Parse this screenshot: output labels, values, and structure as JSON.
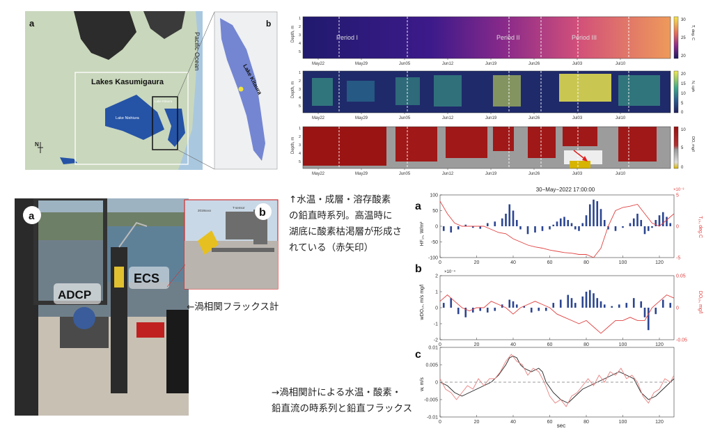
{
  "map": {
    "panel_a": "a",
    "panel_b": "b",
    "ocean_label": "Pacific Ocean",
    "lakes_label": "Lakes Kasumigaura",
    "lake_nishiura": "Lake Nishiura",
    "lake_kitaura_small": "Lake Kitaura",
    "lake_kitaura": "Lake Kitaura",
    "north_label": "N"
  },
  "heatmaps": {
    "periods": [
      "Period I",
      "Period II",
      "Period III"
    ],
    "dates": [
      "May22",
      "May29",
      "Jun05",
      "Jun12",
      "Jun19",
      "Jun26",
      "Jul03",
      "Jul10"
    ],
    "depth_ticks": [
      "1",
      "2",
      "3",
      "4",
      "5"
    ],
    "depth_label": "Depth, m",
    "temp": {
      "label": "T, deg. C",
      "ticks": [
        "30",
        "25",
        "20"
      ]
    },
    "n": {
      "label": "N, cph",
      "ticks": [
        "20",
        "15",
        "10",
        "5",
        "0"
      ]
    },
    "do": {
      "label": "DO, mg/l",
      "ticks": [
        "10",
        "5",
        "0"
      ]
    }
  },
  "photos": {
    "panel_a": "a",
    "panel_b": "b",
    "adcp": "ADCP",
    "ecs": "ECS",
    "sign_left": "2019xxxx",
    "sign_right": "T-sensor"
  },
  "notes": {
    "note1_lines": [
      "↑水温・成層・溶存酸素",
      "の鉛直時系列。高温時に",
      "湖底に酸素枯渇層が形成さ",
      "れている（赤矢印）"
    ],
    "note2": "←渦相関フラックス計",
    "note3_lines": [
      "→渦相関計による水温・酸素・",
      "鉛直流の時系列と鉛直フラックス"
    ]
  },
  "flux": {
    "title": "30−May−2022 17:00:00",
    "xlabel": "sec",
    "panel_a": "a",
    "panel_b": "b",
    "panel_c": "c",
    "a_ylabel": "HF₁ₛ, W/m²",
    "a_y2label": "T₁ₛ, deg.C",
    "a_exp": "×10⁻³",
    "b_ylabel": "wDO₁ₛ, m/s mg/l",
    "b_y2label": "DO₁ₛ, mg/l",
    "b_exp": "×10⁻⁴",
    "c_ylabel": "w, m/s"
  },
  "chart_data": [
    {
      "type": "bar",
      "panel": "a",
      "title": "30−May−2022 17:00:00",
      "xlabel": "sec",
      "ylabel": "HF₁ₛ, W/m²",
      "y2label": "T₁ₛ, deg.C",
      "xlim": [
        0,
        128
      ],
      "ylim": [
        -100,
        100
      ],
      "y2lim": [
        -5,
        5
      ],
      "xticks": [
        0,
        20,
        40,
        60,
        80,
        100,
        120
      ],
      "yticks": [
        -100,
        -50,
        0,
        50,
        100
      ],
      "y2ticks": [
        -5,
        0,
        5
      ],
      "series": [
        {
          "name": "HF",
          "type": "bar",
          "color": "#2b4590",
          "x": [
            2,
            6,
            10,
            14,
            18,
            22,
            26,
            30,
            34,
            36,
            38,
            40,
            42,
            44,
            48,
            52,
            56,
            60,
            62,
            64,
            66,
            68,
            70,
            72,
            74,
            76,
            78,
            80,
            82,
            84,
            86,
            88,
            90,
            92,
            96,
            100,
            104,
            106,
            108,
            110,
            112,
            114,
            116,
            118,
            120,
            122,
            124,
            126
          ],
          "y": [
            -15,
            -20,
            -10,
            5,
            -5,
            -8,
            10,
            15,
            25,
            40,
            70,
            50,
            20,
            -10,
            -25,
            -20,
            -15,
            -10,
            5,
            15,
            25,
            30,
            20,
            10,
            -10,
            -15,
            10,
            35,
            70,
            85,
            80,
            55,
            20,
            -10,
            -15,
            -5,
            10,
            25,
            40,
            20,
            -25,
            -15,
            -5,
            20,
            35,
            45,
            30,
            10
          ]
        },
        {
          "type": "line",
          "color": "#e04040",
          "x": [
            0,
            4,
            8,
            12,
            16,
            20,
            24,
            28,
            32,
            36,
            40,
            44,
            48,
            52,
            56,
            60,
            64,
            68,
            72,
            76,
            80,
            84,
            88,
            92,
            96,
            100,
            104,
            108,
            112,
            116,
            120,
            124,
            128
          ],
          "y": [
            4,
            2,
            0.5,
            0,
            0,
            0,
            0,
            -0.5,
            -1,
            -1.2,
            -2,
            -2.5,
            -3,
            -3.3,
            -3.5,
            -3.8,
            -4,
            -4.2,
            -4.3,
            -4.5,
            -4.5,
            -5,
            -3.5,
            0,
            2.5,
            3,
            3.2,
            3.5,
            2,
            0.5,
            0,
            1,
            2
          ]
        }
      ]
    },
    {
      "type": "bar",
      "panel": "b",
      "ylabel": "wDO₁ₛ, m/s mg/l",
      "y2label": "DO₁ₛ, mg/l",
      "xlim": [
        0,
        128
      ],
      "ylim": [
        -2,
        2
      ],
      "y2lim": [
        -0.05,
        0.05
      ],
      "xticks": [
        0,
        20,
        40,
        60,
        80,
        100,
        120
      ],
      "yticks": [
        -2,
        -1,
        0,
        1,
        2
      ],
      "y2ticks": [
        -0.05,
        0,
        0.05
      ],
      "series": [
        {
          "name": "wDO",
          "type": "bar",
          "color": "#2b4590",
          "x": [
            2,
            6,
            10,
            14,
            18,
            22,
            26,
            30,
            34,
            38,
            40,
            42,
            46,
            50,
            54,
            58,
            62,
            66,
            70,
            72,
            74,
            78,
            80,
            82,
            84,
            86,
            88,
            90,
            94,
            98,
            102,
            106,
            110,
            112,
            114,
            118,
            122,
            126
          ],
          "y": [
            0.3,
            0.6,
            -0.4,
            -0.6,
            -0.3,
            -0.2,
            -0.3,
            -0.2,
            0.2,
            0.5,
            0.4,
            0.2,
            0.1,
            -0.3,
            -0.2,
            -0.2,
            0.3,
            0.5,
            0.8,
            0.6,
            0.3,
            0.7,
            1.0,
            1.1,
            0.9,
            0.6,
            0.4,
            0.2,
            0.1,
            0.2,
            0.3,
            0.6,
            0.4,
            -0.6,
            -1.4,
            -0.4,
            0.5,
            0.3
          ]
        },
        {
          "type": "line",
          "color": "#e04040",
          "x": [
            0,
            4,
            8,
            12,
            16,
            20,
            24,
            28,
            32,
            36,
            40,
            44,
            48,
            52,
            56,
            60,
            64,
            68,
            72,
            76,
            80,
            84,
            88,
            92,
            96,
            100,
            104,
            108,
            112,
            116,
            120,
            124,
            128
          ],
          "y": [
            0.01,
            0.02,
            0.01,
            0,
            -0.005,
            0,
            0,
            0.01,
            0.005,
            0,
            -0.01,
            0,
            0.005,
            0.01,
            0.005,
            0,
            -0.01,
            -0.015,
            -0.02,
            -0.025,
            -0.02,
            -0.03,
            -0.04,
            -0.03,
            -0.02,
            -0.02,
            -0.015,
            -0.02,
            -0.02,
            0,
            0.01,
            0.02,
            0.015
          ]
        }
      ]
    },
    {
      "type": "line",
      "panel": "c",
      "xlabel": "sec",
      "ylabel": "w, m/s",
      "xlim": [
        0,
        128
      ],
      "ylim": [
        -0.01,
        0.01
      ],
      "xticks": [
        0,
        20,
        40,
        60,
        80,
        100,
        120
      ],
      "yticks": [
        -0.01,
        -0.005,
        0,
        0.005,
        0.01
      ],
      "series": [
        {
          "type": "line",
          "color": "#222222",
          "x": [
            0,
            4,
            8,
            12,
            16,
            20,
            24,
            28,
            32,
            36,
            38,
            40,
            42,
            44,
            46,
            50,
            54,
            56,
            58,
            62,
            66,
            70,
            74,
            78,
            82,
            86,
            90,
            94,
            98,
            102,
            106,
            110,
            114,
            118,
            122,
            126,
            128
          ],
          "y": [
            0,
            -0.001,
            -0.003,
            -0.004,
            -0.003,
            -0.002,
            -0.001,
            0,
            0.002,
            0.005,
            0.007,
            0.0075,
            0.007,
            0.005,
            0.004,
            0.003,
            0.004,
            0.003,
            0,
            -0.003,
            -0.005,
            -0.006,
            -0.004,
            -0.002,
            -0.001,
            0,
            0.001,
            0.002,
            0.003,
            0.002,
            0.001,
            -0.003,
            -0.005,
            -0.004,
            -0.002,
            0,
            0.001
          ]
        },
        {
          "type": "line",
          "color": "#e88080",
          "x": [
            0,
            3,
            6,
            9,
            12,
            15,
            18,
            21,
            24,
            27,
            30,
            33,
            36,
            39,
            42,
            45,
            48,
            51,
            54,
            57,
            60,
            63,
            66,
            69,
            72,
            75,
            78,
            81,
            84,
            87,
            90,
            93,
            96,
            99,
            102,
            105,
            108,
            111,
            114,
            117,
            120,
            123,
            126,
            128
          ],
          "y": [
            0.001,
            -0.002,
            -0.003,
            -0.005,
            -0.003,
            -0.001,
            -0.002,
            0.001,
            -0.001,
            0.001,
            0.001,
            0.003,
            0.006,
            0.008,
            0.006,
            0.005,
            0.002,
            0.004,
            0.003,
            0,
            -0.004,
            -0.006,
            -0.005,
            -0.007,
            -0.004,
            -0.003,
            -0.001,
            0.001,
            -0.001,
            0.002,
            0,
            0.003,
            0.002,
            0.004,
            0.001,
            0.002,
            0,
            -0.004,
            -0.006,
            -0.003,
            -0.002,
            0.001,
            0,
            0.002
          ]
        },
        {
          "type": "line",
          "color": "#999999",
          "dashed": true,
          "x": [
            0,
            128
          ],
          "y": [
            0,
            0
          ]
        }
      ]
    }
  ]
}
